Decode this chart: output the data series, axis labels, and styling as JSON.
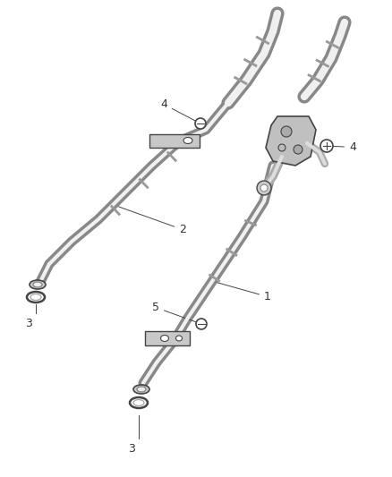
{
  "background_color": "#ffffff",
  "line_color": "#444444",
  "label_color": "#333333",
  "figsize": [
    4.38,
    5.33
  ],
  "dpi": 100,
  "tube_outer_color": "#888888",
  "tube_inner_color": "#f0f0f0",
  "tube_outer_lw": 9,
  "tube_inner_lw": 5,
  "connector_color": "#aaaaaa",
  "bracket_color": "#bbbbbb",
  "label_fontsize": 9,
  "leader_lw": 0.7,
  "leader_color": "#444444"
}
